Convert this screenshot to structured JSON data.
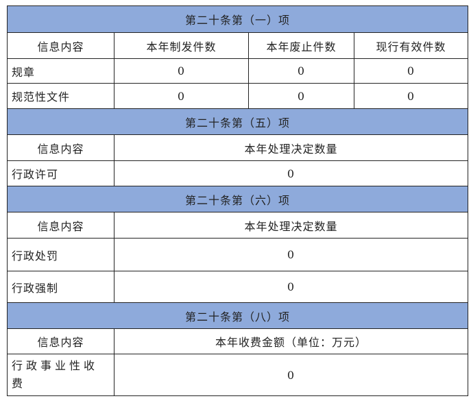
{
  "sections": [
    {
      "title": "第二十条第（一）项",
      "headers": [
        "信息内容",
        "本年制发件数",
        "本年废止件数",
        "现行有效件数"
      ],
      "rows": [
        {
          "label": "规章",
          "values": [
            "0",
            "0",
            "0"
          ]
        },
        {
          "label": "规范性文件",
          "values": [
            "0",
            "0",
            "0"
          ]
        }
      ]
    },
    {
      "title": "第二十条第（五）项",
      "headers": [
        "信息内容",
        "本年处理决定数量"
      ],
      "rows": [
        {
          "label": "行政许可",
          "value": "0"
        }
      ]
    },
    {
      "title": "第二十条第（六）项",
      "headers": [
        "信息内容",
        "本年处理决定数量"
      ],
      "rows": [
        {
          "label": "行政处罚",
          "value": "0"
        },
        {
          "label": "行政强制",
          "value": "0"
        }
      ]
    },
    {
      "title": "第二十条第（八）项",
      "headers": [
        "信息内容",
        "本年收费金额（单位：万元）"
      ],
      "rows": [
        {
          "label": "行政事业性收费",
          "value": "0"
        }
      ]
    }
  ],
  "colors": {
    "section_header_bg": "#8eaadb",
    "border": "#222222"
  }
}
